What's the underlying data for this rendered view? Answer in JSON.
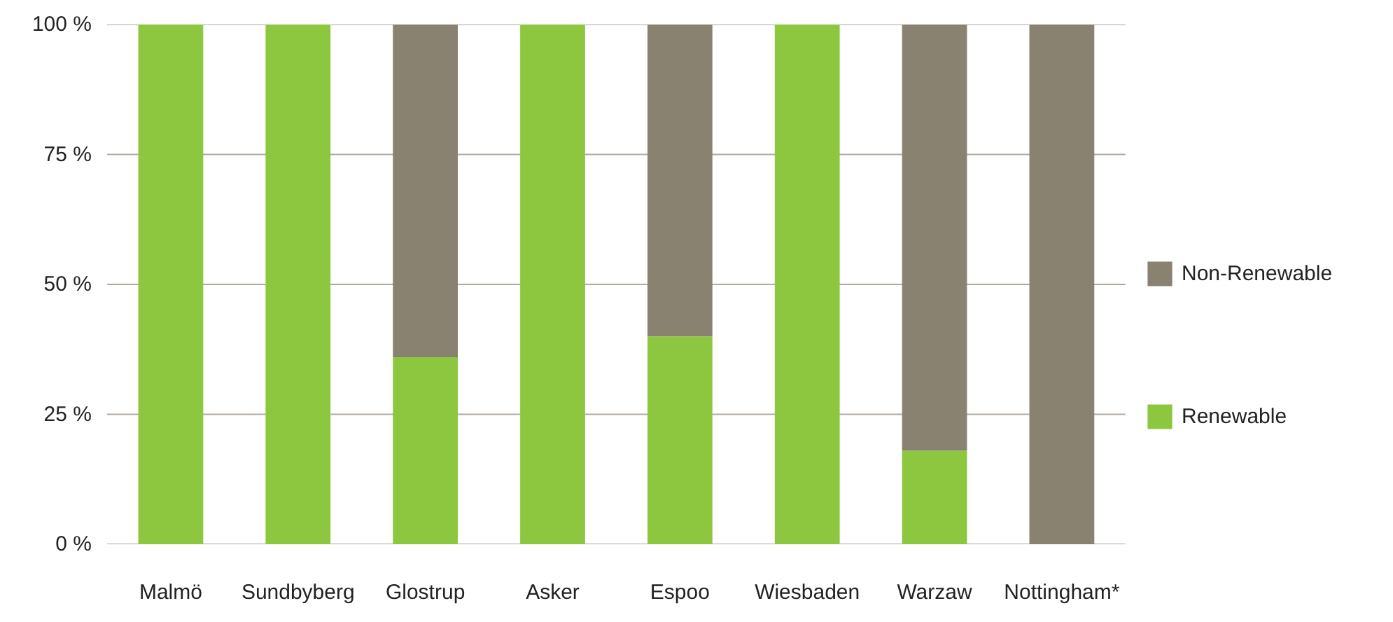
{
  "chart_data": {
    "type": "bar",
    "stacked": true,
    "categories": [
      "Malmö",
      "Sundbyberg",
      "Glostrup",
      "Asker",
      "Espoo",
      "Wiesbaden",
      "Warzaw",
      "Nottingham*"
    ],
    "series": [
      {
        "name": "Renewable",
        "color": "#8dc63f",
        "values": [
          100,
          100,
          36,
          100,
          40,
          100,
          18,
          0
        ]
      },
      {
        "name": "Non-Renewable",
        "color": "#8a8270",
        "values": [
          0,
          0,
          64,
          0,
          60,
          0,
          82,
          100
        ]
      }
    ],
    "ylim": [
      0,
      100
    ],
    "yticks": [
      {
        "value": 0,
        "label": "0 %"
      },
      {
        "value": 25,
        "label": "25 %"
      },
      {
        "value": 50,
        "label": "50 %"
      },
      {
        "value": 75,
        "label": "75 %"
      },
      {
        "value": 100,
        "label": "100 %"
      }
    ],
    "grid": "y",
    "legend": "right"
  }
}
